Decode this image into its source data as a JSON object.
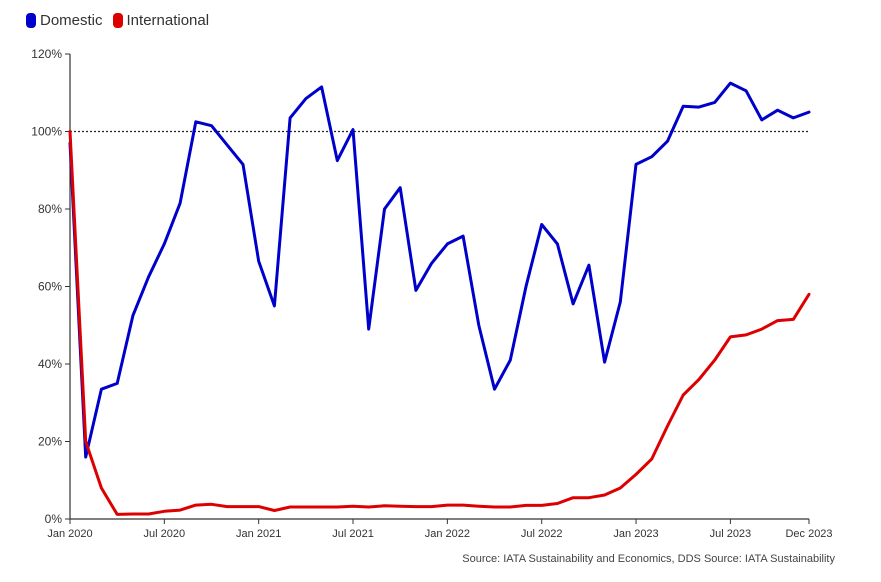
{
  "chart_data": {
    "type": "line",
    "title": "",
    "xlabel": "",
    "ylabel": "",
    "ylim": [
      0,
      120
    ],
    "yticks": [
      0,
      20,
      40,
      60,
      80,
      100,
      120
    ],
    "ytick_labels": [
      "0%",
      "20%",
      "40%",
      "60%",
      "80%",
      "100%",
      "120%"
    ],
    "x": [
      "2020-01",
      "2020-02",
      "2020-03",
      "2020-04",
      "2020-05",
      "2020-06",
      "2020-07",
      "2020-08",
      "2020-09",
      "2020-10",
      "2020-11",
      "2020-12",
      "2021-01",
      "2021-02",
      "2021-03",
      "2021-04",
      "2021-05",
      "2021-06",
      "2021-07",
      "2021-08",
      "2021-09",
      "2021-10",
      "2021-11",
      "2021-12",
      "2022-01",
      "2022-02",
      "2022-03",
      "2022-04",
      "2022-05",
      "2022-06",
      "2022-07",
      "2022-08",
      "2022-09",
      "2022-10",
      "2022-11",
      "2022-12",
      "2023-01",
      "2023-02",
      "2023-03",
      "2023-04",
      "2023-05",
      "2023-06",
      "2023-07",
      "2023-08",
      "2023-09",
      "2023-10",
      "2023-11",
      "2023-12"
    ],
    "xticks": [
      "2020-01",
      "2020-07",
      "2021-01",
      "2021-07",
      "2022-01",
      "2022-07",
      "2023-01",
      "2023-07",
      "2023-12"
    ],
    "xtick_labels": [
      "Jan 2020",
      "Jul 2020",
      "Jan 2021",
      "Jul 2021",
      "Jan 2022",
      "Jul 2022",
      "Jan 2023",
      "Jul 2023",
      "Dec 2023"
    ],
    "reference_line": 100,
    "legend_position": "top-left",
    "series": [
      {
        "name": "Domestic",
        "color": "#0000cc",
        "points": [
          [
            "2020-01",
            97
          ],
          [
            "2020-02",
            16
          ],
          [
            "2020-03",
            33.5
          ],
          [
            "2020-04",
            35
          ],
          [
            "2020-05",
            52.5
          ],
          [
            "2020-06",
            62.5
          ],
          [
            "2020-07",
            71
          ],
          [
            "2020-08",
            81.5
          ],
          [
            "2020-09",
            102.5
          ],
          [
            "2020-10",
            101.5
          ],
          [
            "2020-11",
            96.5
          ],
          [
            "2020-12",
            91.5
          ],
          [
            "2021-01",
            66.5
          ],
          [
            "2021-02",
            55
          ],
          [
            "2021-03",
            103.5
          ],
          [
            "2021-04",
            108.5
          ],
          [
            "2021-05",
            111.5
          ],
          [
            "2021-06",
            92.5
          ],
          [
            "2021-07",
            100.5
          ],
          [
            "2021-08",
            49
          ],
          [
            "2021-09",
            80
          ],
          [
            "2021-10",
            85.5
          ],
          [
            "2021-11",
            59
          ],
          [
            "2021-12",
            66
          ],
          [
            "2022-01",
            71
          ],
          [
            "2022-02",
            73
          ],
          [
            "2022-03",
            50
          ],
          [
            "2022-04",
            33.5
          ],
          [
            "2022-05",
            41
          ],
          [
            "2022-06",
            60
          ],
          [
            "2022-07",
            76
          ],
          [
            "2022-08",
            71
          ],
          [
            "2022-09",
            55.5
          ],
          [
            "2022-10",
            65.5
          ],
          [
            "2022-11",
            40.5
          ],
          [
            "2022-12",
            56
          ],
          [
            "2023-01",
            91.5
          ],
          [
            "2023-02",
            93.5
          ],
          [
            "2023-03",
            97.5
          ],
          [
            "2023-04",
            106.5
          ],
          [
            "2023-05",
            106.3
          ],
          [
            "2023-06",
            107.5
          ],
          [
            "2023-07",
            112.5
          ],
          [
            "2023-08",
            110.5
          ],
          [
            "2023-09",
            103
          ],
          [
            "2023-10",
            105.5
          ],
          [
            "2023-11",
            103.5
          ],
          [
            "2023-12",
            105
          ]
        ]
      },
      {
        "name": "International",
        "color": "#dd0000",
        "points": [
          [
            "2020-01",
            100
          ],
          [
            "2020-02",
            20
          ],
          [
            "2020-03",
            8
          ],
          [
            "2020-04",
            1.2
          ],
          [
            "2020-05",
            1.3
          ],
          [
            "2020-06",
            1.3
          ],
          [
            "2020-07",
            2
          ],
          [
            "2020-08",
            2.3
          ],
          [
            "2020-09",
            3.6
          ],
          [
            "2020-10",
            3.8
          ],
          [
            "2020-11",
            3.2
          ],
          [
            "2020-12",
            3.2
          ],
          [
            "2021-01",
            3.2
          ],
          [
            "2021-02",
            2.2
          ],
          [
            "2021-03",
            3.1
          ],
          [
            "2021-04",
            3.1
          ],
          [
            "2021-05",
            3.1
          ],
          [
            "2021-06",
            3.1
          ],
          [
            "2021-07",
            3.3
          ],
          [
            "2021-08",
            3.1
          ],
          [
            "2021-09",
            3.4
          ],
          [
            "2021-10",
            3.3
          ],
          [
            "2021-11",
            3.2
          ],
          [
            "2021-12",
            3.2
          ],
          [
            "2022-01",
            3.6
          ],
          [
            "2022-02",
            3.6
          ],
          [
            "2022-03",
            3.3
          ],
          [
            "2022-04",
            3.1
          ],
          [
            "2022-05",
            3.1
          ],
          [
            "2022-06",
            3.5
          ],
          [
            "2022-07",
            3.5
          ],
          [
            "2022-08",
            4.0
          ],
          [
            "2022-09",
            5.5
          ],
          [
            "2022-10",
            5.5
          ],
          [
            "2022-11",
            6.2
          ],
          [
            "2022-12",
            8.0
          ],
          [
            "2023-01",
            11.5
          ],
          [
            "2023-02",
            15.5
          ],
          [
            "2023-03",
            24
          ],
          [
            "2023-04",
            32
          ],
          [
            "2023-05",
            36
          ],
          [
            "2023-06",
            41
          ],
          [
            "2023-07",
            47
          ],
          [
            "2023-08",
            47.5
          ],
          [
            "2023-09",
            49
          ],
          [
            "2023-10",
            51.2
          ],
          [
            "2023-11",
            51.5
          ],
          [
            "2023-12",
            58
          ]
        ]
      }
    ]
  },
  "source": "Source: IATA Sustainability and Economics, DDS Source: IATA Sustainability"
}
